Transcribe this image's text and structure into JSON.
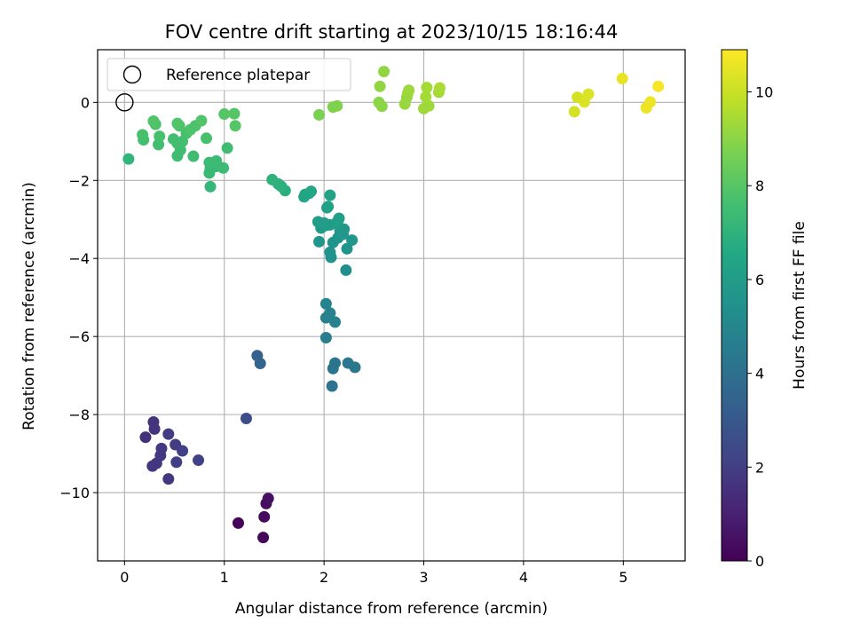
{
  "chart_data": {
    "type": "scatter",
    "title": "FOV centre drift starting at 2023/10/15 18:16:44",
    "xlabel": "Angular distance from reference (arcmin)",
    "ylabel": "Rotation from reference (arcmin)",
    "xlim": [
      -0.27,
      5.62
    ],
    "ylim": [
      -11.75,
      1.35
    ],
    "xticks": [
      0,
      1,
      2,
      3,
      4,
      5
    ],
    "yticks": [
      0,
      -2,
      -4,
      -6,
      -8,
      -10
    ],
    "xtick_labels": [
      "0",
      "1",
      "2",
      "3",
      "4",
      "5"
    ],
    "ytick_labels": [
      "0",
      "−2",
      "−4",
      "−6",
      "−8",
      "−10"
    ],
    "grid": true,
    "legend_position": "top-left",
    "colormap": "viridis",
    "colorbar": {
      "label": "Hours from first FF file",
      "range": [
        0,
        10.9
      ],
      "ticks": [
        0,
        2,
        4,
        6,
        8,
        10
      ],
      "tick_labels": [
        "0",
        "2",
        "4",
        "6",
        "8",
        "10"
      ]
    },
    "series": [
      {
        "name": "Reference platepar",
        "marker": "open-circle",
        "points": [
          {
            "x": 0,
            "y": 0
          }
        ]
      },
      {
        "name": "",
        "marker": "filled-circle",
        "points": [
          {
            "x": 1.14,
            "y": -10.78,
            "c": 0.1
          },
          {
            "x": 1.39,
            "y": -11.15,
            "c": 0.2
          },
          {
            "x": 1.4,
            "y": -10.62,
            "c": 0.3
          },
          {
            "x": 1.42,
            "y": -10.28,
            "c": 0.4
          },
          {
            "x": 1.44,
            "y": -10.15,
            "c": 0.5
          },
          {
            "x": 0.21,
            "y": -8.58,
            "c": 1.5
          },
          {
            "x": 0.29,
            "y": -8.19,
            "c": 1.6
          },
          {
            "x": 0.3,
            "y": -8.37,
            "c": 1.6
          },
          {
            "x": 0.28,
            "y": -9.32,
            "c": 1.7
          },
          {
            "x": 0.32,
            "y": -9.25,
            "c": 1.7
          },
          {
            "x": 0.36,
            "y": -9.05,
            "c": 1.8
          },
          {
            "x": 0.37,
            "y": -8.87,
            "c": 1.8
          },
          {
            "x": 0.44,
            "y": -8.5,
            "c": 1.9
          },
          {
            "x": 0.51,
            "y": -8.77,
            "c": 1.9
          },
          {
            "x": 0.52,
            "y": -9.22,
            "c": 2.0
          },
          {
            "x": 0.58,
            "y": -8.93,
            "c": 2.0
          },
          {
            "x": 0.44,
            "y": -9.65,
            "c": 1.7
          },
          {
            "x": 0.74,
            "y": -9.17,
            "c": 2.1
          },
          {
            "x": 1.22,
            "y": -8.1,
            "c": 2.6
          },
          {
            "x": 1.33,
            "y": -6.49,
            "c": 3.4
          },
          {
            "x": 1.36,
            "y": -6.69,
            "c": 3.5
          },
          {
            "x": 2.08,
            "y": -7.27,
            "c": 4.1
          },
          {
            "x": 2.09,
            "y": -6.82,
            "c": 4.2
          },
          {
            "x": 2.11,
            "y": -6.68,
            "c": 4.2
          },
          {
            "x": 2.24,
            "y": -6.68,
            "c": 4.3
          },
          {
            "x": 2.31,
            "y": -6.79,
            "c": 4.3
          },
          {
            "x": 2.02,
            "y": -6.03,
            "c": 4.6
          },
          {
            "x": 2.02,
            "y": -5.52,
            "c": 4.7
          },
          {
            "x": 2.06,
            "y": -5.4,
            "c": 4.8
          },
          {
            "x": 2.02,
            "y": -5.16,
            "c": 4.8
          },
          {
            "x": 2.11,
            "y": -5.63,
            "c": 4.8
          },
          {
            "x": 2.22,
            "y": -4.3,
            "c": 5.4
          },
          {
            "x": 2.07,
            "y": -3.97,
            "c": 5.5
          },
          {
            "x": 2.06,
            "y": -3.84,
            "c": 5.5
          },
          {
            "x": 2.09,
            "y": -3.59,
            "c": 5.6
          },
          {
            "x": 2.14,
            "y": -3.47,
            "c": 5.6
          },
          {
            "x": 2.23,
            "y": -3.75,
            "c": 5.6
          },
          {
            "x": 2.28,
            "y": -3.53,
            "c": 5.7
          },
          {
            "x": 1.95,
            "y": -3.57,
            "c": 5.7
          },
          {
            "x": 2.16,
            "y": -3.29,
            "c": 5.7
          },
          {
            "x": 2.19,
            "y": -3.38,
            "c": 5.8
          },
          {
            "x": 2.2,
            "y": -3.25,
            "c": 5.8
          },
          {
            "x": 1.97,
            "y": -3.22,
            "c": 5.9
          },
          {
            "x": 2.02,
            "y": -3.15,
            "c": 5.9
          },
          {
            "x": 2.06,
            "y": -3.14,
            "c": 5.9
          },
          {
            "x": 1.94,
            "y": -3.06,
            "c": 6.0
          },
          {
            "x": 2.0,
            "y": -3.09,
            "c": 6.0
          },
          {
            "x": 2.12,
            "y": -3.1,
            "c": 6.0
          },
          {
            "x": 2.15,
            "y": -2.97,
            "c": 6.1
          },
          {
            "x": 2.14,
            "y": -3.03,
            "c": 6.1
          },
          {
            "x": 2.03,
            "y": -2.7,
            "c": 6.2
          },
          {
            "x": 2.04,
            "y": -2.67,
            "c": 6.2
          },
          {
            "x": 2.06,
            "y": -2.38,
            "c": 6.3
          },
          {
            "x": 1.8,
            "y": -2.42,
            "c": 6.4
          },
          {
            "x": 1.81,
            "y": -2.36,
            "c": 6.4
          },
          {
            "x": 1.85,
            "y": -2.33,
            "c": 6.4
          },
          {
            "x": 1.87,
            "y": -2.28,
            "c": 6.5
          },
          {
            "x": 1.61,
            "y": -2.26,
            "c": 6.8
          },
          {
            "x": 1.57,
            "y": -2.15,
            "c": 6.9
          },
          {
            "x": 1.54,
            "y": -2.09,
            "c": 6.9
          },
          {
            "x": 1.48,
            "y": -1.98,
            "c": 7.0
          },
          {
            "x": 0.86,
            "y": -2.16,
            "c": 7.2
          },
          {
            "x": 0.85,
            "y": -1.81,
            "c": 7.3
          },
          {
            "x": 0.86,
            "y": -1.69,
            "c": 7.3
          },
          {
            "x": 0.92,
            "y": -1.64,
            "c": 7.3
          },
          {
            "x": 0.99,
            "y": -1.68,
            "c": 7.4
          },
          {
            "x": 0.85,
            "y": -1.54,
            "c": 7.4
          },
          {
            "x": 0.92,
            "y": -1.5,
            "c": 7.4
          },
          {
            "x": 0.04,
            "y": -1.45,
            "c": 7.1
          },
          {
            "x": 0.53,
            "y": -1.37,
            "c": 7.5
          },
          {
            "x": 0.69,
            "y": -1.38,
            "c": 7.5
          },
          {
            "x": 0.56,
            "y": -1.22,
            "c": 7.5
          },
          {
            "x": 1.03,
            "y": -1.17,
            "c": 7.5
          },
          {
            "x": 0.34,
            "y": -1.08,
            "c": 7.6
          },
          {
            "x": 0.53,
            "y": -1.05,
            "c": 7.6
          },
          {
            "x": 0.58,
            "y": -1.0,
            "c": 7.6
          },
          {
            "x": 0.19,
            "y": -0.96,
            "c": 7.6
          },
          {
            "x": 0.49,
            "y": -0.94,
            "c": 7.6
          },
          {
            "x": 0.35,
            "y": -0.87,
            "c": 7.7
          },
          {
            "x": 0.82,
            "y": -0.92,
            "c": 7.7
          },
          {
            "x": 0.18,
            "y": -0.83,
            "c": 7.7
          },
          {
            "x": 0.62,
            "y": -0.79,
            "c": 7.7
          },
          {
            "x": 0.66,
            "y": -0.7,
            "c": 7.8
          },
          {
            "x": 0.55,
            "y": -0.6,
            "c": 7.8
          },
          {
            "x": 0.71,
            "y": -0.6,
            "c": 7.8
          },
          {
            "x": 0.31,
            "y": -0.56,
            "c": 7.8
          },
          {
            "x": 0.53,
            "y": -0.54,
            "c": 7.9
          },
          {
            "x": 0.77,
            "y": -0.47,
            "c": 7.9
          },
          {
            "x": 0.29,
            "y": -0.48,
            "c": 7.9
          },
          {
            "x": 1.11,
            "y": -0.6,
            "c": 8.0
          },
          {
            "x": 1.1,
            "y": -0.29,
            "c": 8.0
          },
          {
            "x": 1.0,
            "y": -0.3,
            "c": 8.0
          },
          {
            "x": 1.95,
            "y": -0.32,
            "c": 8.7
          },
          {
            "x": 2.09,
            "y": -0.12,
            "c": 8.8
          },
          {
            "x": 2.13,
            "y": -0.09,
            "c": 8.8
          },
          {
            "x": 2.55,
            "y": 0.0,
            "c": 9.0
          },
          {
            "x": 2.58,
            "y": -0.1,
            "c": 9.0
          },
          {
            "x": 2.56,
            "y": 0.41,
            "c": 9.1
          },
          {
            "x": 2.6,
            "y": 0.79,
            "c": 9.1
          },
          {
            "x": 2.81,
            "y": -0.04,
            "c": 9.2
          },
          {
            "x": 2.83,
            "y": 0.13,
            "c": 9.2
          },
          {
            "x": 2.84,
            "y": 0.24,
            "c": 9.2
          },
          {
            "x": 2.85,
            "y": 0.31,
            "c": 9.3
          },
          {
            "x": 3.0,
            "y": -0.16,
            "c": 9.3
          },
          {
            "x": 3.05,
            "y": -0.09,
            "c": 9.3
          },
          {
            "x": 3.02,
            "y": 0.14,
            "c": 9.4
          },
          {
            "x": 3.03,
            "y": 0.38,
            "c": 9.4
          },
          {
            "x": 3.15,
            "y": 0.26,
            "c": 9.4
          },
          {
            "x": 3.16,
            "y": 0.37,
            "c": 9.5
          },
          {
            "x": 4.51,
            "y": -0.24,
            "c": 10.2
          },
          {
            "x": 4.54,
            "y": 0.13,
            "c": 10.2
          },
          {
            "x": 4.61,
            "y": 0.01,
            "c": 10.3
          },
          {
            "x": 4.65,
            "y": 0.21,
            "c": 10.3
          },
          {
            "x": 4.99,
            "y": 0.61,
            "c": 10.5
          },
          {
            "x": 5.23,
            "y": -0.14,
            "c": 10.6
          },
          {
            "x": 5.27,
            "y": 0.01,
            "c": 10.6
          },
          {
            "x": 5.35,
            "y": 0.41,
            "c": 10.8
          }
        ]
      }
    ]
  }
}
